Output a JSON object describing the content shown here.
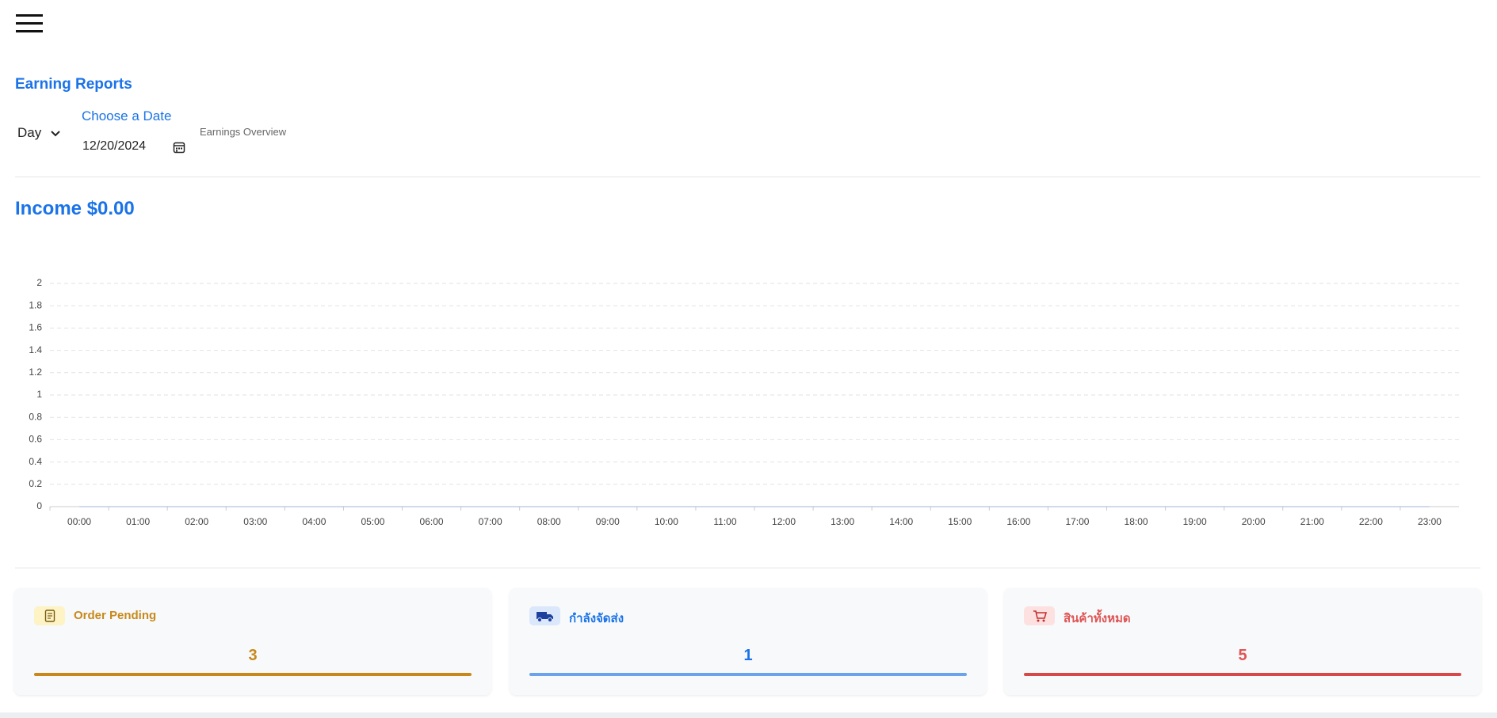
{
  "header": {
    "title": "Earning Reports"
  },
  "filters": {
    "period": "Day",
    "date_label": "Choose a Date",
    "date": "12/20/2024",
    "overview": "Earnings Overview"
  },
  "income": "Income $0.00",
  "chart_data": {
    "type": "line",
    "categories": [
      "00:00",
      "01:00",
      "02:00",
      "03:00",
      "04:00",
      "05:00",
      "06:00",
      "07:00",
      "08:00",
      "09:00",
      "10:00",
      "11:00",
      "12:00",
      "13:00",
      "14:00",
      "15:00",
      "16:00",
      "17:00",
      "18:00",
      "19:00",
      "20:00",
      "21:00",
      "22:00",
      "23:00"
    ],
    "values": [
      0,
      0,
      0,
      0,
      0,
      0,
      0,
      0,
      0,
      0,
      0,
      0,
      0,
      0,
      0,
      0,
      0,
      0,
      0,
      0,
      0,
      0,
      0,
      0
    ],
    "color": "#1a73e8",
    "ylim": [
      0,
      2
    ],
    "yticks": [
      0,
      0.2,
      0.4,
      0.6,
      0.8,
      1,
      1.2,
      1.4,
      1.6,
      1.8,
      2
    ],
    "grid": true
  },
  "cards": [
    {
      "label": "Order Pending",
      "value": 3
    },
    {
      "label": "กำลังจัดส่ง",
      "value": 1
    },
    {
      "label": "สินค้าทั้งหมด",
      "value": 5
    }
  ]
}
